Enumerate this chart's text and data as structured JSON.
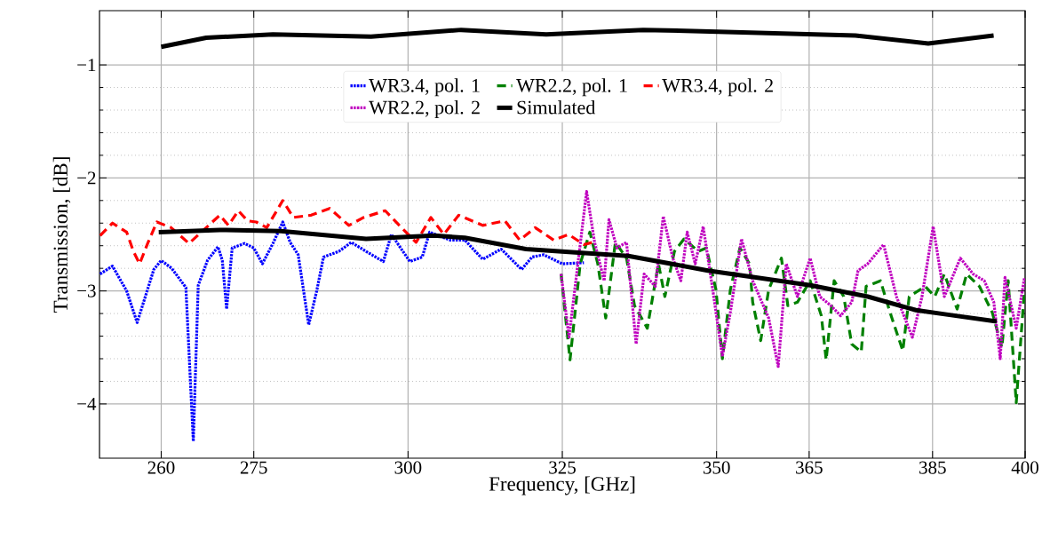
{
  "chart_data": {
    "type": "line",
    "xlabel": "Frequency, [GHz]",
    "ylabel": "Transmission, [dB]",
    "xlim": [
      250,
      400
    ],
    "ylim": [
      -4.48,
      -0.52
    ],
    "xticks": [
      260,
      275,
      300,
      325,
      350,
      365,
      385,
      400
    ],
    "yticks": [
      {
        "value": -4,
        "label": "−4"
      },
      {
        "value": -3,
        "label": "−3"
      },
      {
        "value": -2,
        "label": "−2"
      },
      {
        "value": -1,
        "label": "−1"
      }
    ],
    "grid": true,
    "legend": "top",
    "series": [
      {
        "name": "WR3.4, pol. 1",
        "color": "#0000ff",
        "line_style": "dotted",
        "x": [
          250.1,
          252.1,
          254.4,
          256.1,
          257.6,
          258.8,
          260,
          261.7,
          264.0,
          265.2,
          266.0,
          267.5,
          269.2,
          269.9,
          270.6,
          271.5,
          273.5,
          275.0,
          276.4,
          278.1,
          279.7,
          280.9,
          282.2,
          283.9,
          285.2,
          286.3,
          288.8,
          290.8,
          293.2,
          296.0,
          297.3,
          300.3,
          302.3,
          303.5,
          306.8,
          309.2,
          312.1,
          315.1,
          318.4,
          320.1,
          322.0,
          325.0,
          328.5
        ],
        "values": [
          -2.85,
          -2.78,
          -3.0,
          -3.28,
          -3.02,
          -2.81,
          -2.73,
          -2.8,
          -2.97,
          -4.33,
          -2.95,
          -2.73,
          -2.61,
          -2.73,
          -3.16,
          -2.62,
          -2.58,
          -2.62,
          -2.76,
          -2.58,
          -2.39,
          -2.57,
          -2.68,
          -3.3,
          -3.0,
          -2.7,
          -2.65,
          -2.57,
          -2.65,
          -2.74,
          -2.5,
          -2.74,
          -2.7,
          -2.48,
          -2.55,
          -2.55,
          -2.72,
          -2.63,
          -2.81,
          -2.7,
          -2.68,
          -2.76,
          -2.75
        ]
      },
      {
        "name": "WR2.2, pol. 1",
        "color": "#008000",
        "line_style": "dashed",
        "x": [
          324.8,
          326.25,
          327.9,
          329.46,
          330.75,
          332.04,
          333.6,
          335.41,
          336.7,
          338.77,
          340.58,
          341.62,
          343.17,
          344.73,
          347.05,
          348.35,
          349.9,
          350.94,
          352.23,
          353.78,
          355.34,
          355.85,
          357.15,
          358.44,
          360.51,
          361.55,
          363.1,
          365.17,
          366.98,
          367.76,
          369.05,
          370.61,
          371.9,
          373.45,
          374.23,
          376.56,
          378.11,
          380.18,
          381.22,
          383.8,
          385.36,
          386.91,
          388.98,
          390.53,
          392.6,
          394.67,
          396.23,
          397.26,
          398.56,
          399.85
        ],
        "values": [
          -2.85,
          -3.61,
          -2.76,
          -2.48,
          -2.76,
          -3.24,
          -2.57,
          -2.71,
          -3.13,
          -3.33,
          -2.76,
          -3.05,
          -2.65,
          -2.54,
          -2.65,
          -2.62,
          -2.99,
          -3.6,
          -2.99,
          -2.62,
          -2.76,
          -3.1,
          -3.44,
          -2.99,
          -2.71,
          -3.13,
          -3.1,
          -2.91,
          -3.22,
          -3.61,
          -2.91,
          -3.05,
          -3.47,
          -3.54,
          -2.96,
          -2.91,
          -3.19,
          -3.53,
          -3.05,
          -2.96,
          -3.05,
          -2.85,
          -3.16,
          -2.85,
          -2.96,
          -3.19,
          -3.5,
          -2.91,
          -3.99,
          -3.02
        ]
      },
      {
        "name": "WR3.4, pol. 2",
        "color": "#ff0000",
        "line_style": "dashed",
        "x": [
          250.1,
          252.1,
          254.4,
          255.5,
          256.5,
          257.8,
          259.3,
          261.6,
          264.5,
          266.5,
          269.5,
          270.9,
          272.5,
          274.0,
          275.4,
          277.1,
          279.7,
          281.4,
          284.3,
          287.3,
          290.4,
          292.8,
          296.3,
          299.3,
          301.3,
          303.7,
          305.8,
          308.2,
          312.1,
          315.7,
          318.1,
          320.6,
          323.6,
          326.0,
          328.5,
          329.9
        ],
        "values": [
          -2.51,
          -2.4,
          -2.48,
          -2.65,
          -2.76,
          -2.58,
          -2.39,
          -2.44,
          -2.58,
          -2.48,
          -2.33,
          -2.42,
          -2.29,
          -2.38,
          -2.39,
          -2.44,
          -2.2,
          -2.35,
          -2.33,
          -2.27,
          -2.42,
          -2.35,
          -2.29,
          -2.46,
          -2.57,
          -2.35,
          -2.5,
          -2.33,
          -2.42,
          -2.38,
          -2.55,
          -2.44,
          -2.55,
          -2.5,
          -2.59,
          -2.57
        ]
      },
      {
        "name": "WR2.2, pol. 2",
        "color": "#bf00bf",
        "line_style": "dotted",
        "x": [
          324.8,
          326.09,
          327.39,
          328.94,
          330.23,
          331.79,
          332.56,
          333.86,
          335.41,
          336.96,
          338.26,
          340.07,
          341.36,
          342.91,
          344.21,
          345.24,
          346.54,
          347.83,
          349.38,
          350.94,
          352.23,
          354.04,
          355.85,
          358.44,
          359.99,
          361.29,
          363.1,
          365.17,
          366.72,
          368.53,
          370.09,
          371.9,
          372.93,
          374.49,
          377.07,
          379.15,
          381.73,
          383.29,
          385.1,
          386.91,
          389.5,
          391.57,
          393.38,
          394.93,
          395.97,
          396.74,
          398.56,
          399.9
        ],
        "values": [
          -2.85,
          -3.41,
          -2.82,
          -2.12,
          -2.57,
          -2.91,
          -2.37,
          -2.62,
          -2.57,
          -3.47,
          -2.85,
          -2.96,
          -2.34,
          -2.71,
          -2.91,
          -2.48,
          -2.76,
          -2.43,
          -2.99,
          -3.58,
          -3.19,
          -2.54,
          -2.91,
          -3.24,
          -3.67,
          -2.76,
          -3.05,
          -2.71,
          -3.05,
          -3.13,
          -3.22,
          -3.1,
          -2.82,
          -2.76,
          -2.59,
          -3.05,
          -3.41,
          -3.05,
          -2.43,
          -3.05,
          -2.71,
          -2.85,
          -2.91,
          -3.1,
          -3.6,
          -2.88,
          -3.33,
          -2.88
        ]
      },
      {
        "name": "Simulated",
        "color": "#000000",
        "line_style": "solid",
        "x": [
          259.6,
          269.5,
          279.4,
          293.2,
          304.2,
          309.2,
          319.1,
          327.1,
          335.7,
          348.6,
          365.2,
          374.5,
          382.3,
          387.5,
          395.4
        ],
        "values": [
          -2.48,
          -2.46,
          -2.47,
          -2.54,
          -2.51,
          -2.53,
          -2.63,
          -2.66,
          -2.69,
          -2.82,
          -2.95,
          -3.05,
          -3.17,
          -3.21,
          -3.27
        ]
      },
      {
        "color": "#000000",
        "line_style": "solid",
        "x": [
          260,
          267.3,
          278.1,
          294,
          308.6,
          322.4,
          338.1,
          352.9,
          372.5,
          384.3,
          394.9
        ],
        "values": [
          -0.84,
          -0.76,
          -0.73,
          -0.75,
          -0.69,
          -0.73,
          -0.69,
          -0.71,
          -0.74,
          -0.81,
          -0.74
        ]
      }
    ]
  }
}
